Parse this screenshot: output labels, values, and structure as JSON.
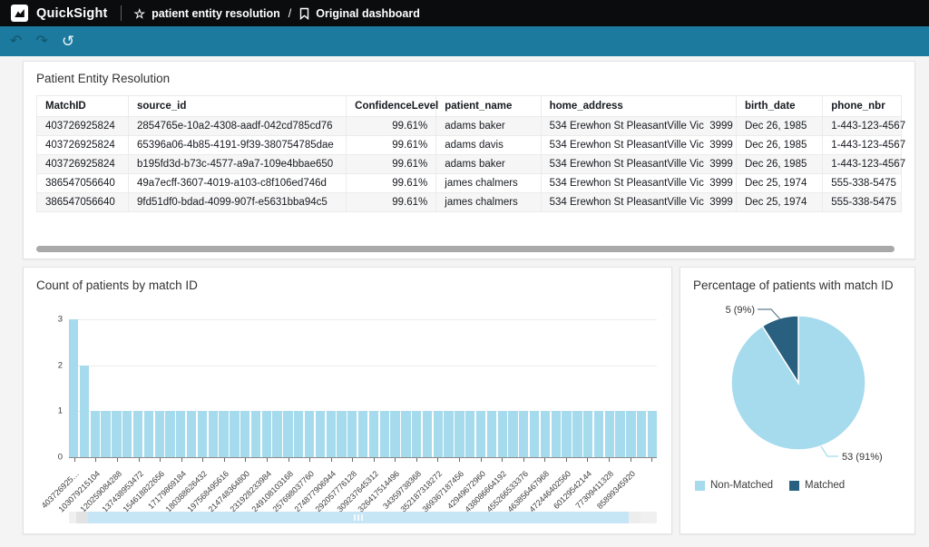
{
  "header": {
    "app_name": "QuickSight",
    "breadcrumb_analysis": "patient entity resolution",
    "breadcrumb_separator": "/",
    "breadcrumb_page": "Original dashboard"
  },
  "icons": {
    "undo": "↶",
    "redo": "↷",
    "reset": "↺",
    "star": "☆"
  },
  "colors": {
    "toolbar_teal": "#1b7a9e",
    "topbar_black": "#0b0c0d",
    "bar_fill": "#a5dbed",
    "pie_light": "#a5dbed",
    "pie_dark": "#2a607f"
  },
  "table_panel": {
    "title": "Patient Entity Resolution",
    "columns": [
      "MatchID",
      "source_id",
      "ConfidenceLevel",
      "patient_name",
      "home_address",
      "birth_date",
      "phone_nbr"
    ],
    "rows": [
      [
        "403726925824",
        "2854765e-10a2-4308-aadf-042cd785cd76",
        "99.61%",
        "adams baker",
        "534 Erewhon St PleasantVille Vic  3999",
        "Dec 26, 1985",
        "1-443-123-4567"
      ],
      [
        "403726925824",
        "65396a06-4b85-4191-9f39-380754785dae",
        "99.61%",
        "adams davis",
        "534 Erewhon St PleasantVille Vic  3999",
        "Dec 26, 1985",
        "1-443-123-4567"
      ],
      [
        "403726925824",
        "b195fd3d-b73c-4577-a9a7-109e4bbae650",
        "99.61%",
        "adams baker",
        "534 Erewhon St PleasantVille Vic  3999",
        "Dec 26, 1985",
        "1-443-123-4567"
      ],
      [
        "386547056640",
        "49a7ecff-3607-4019-a103-c8f106ed746d",
        "99.61%",
        "james chalmers",
        "534 Erewhon St PleasantVille Vic  3999",
        "Dec 25, 1974",
        "555-338-5475"
      ],
      [
        "386547056640",
        "9fd51df0-bdad-4099-907f-e5631bba94c5",
        "99.61%",
        "james chalmers",
        "534 Erewhon St PleasantVille Vic  3999",
        "Dec 25, 1974",
        "555-338-5475"
      ]
    ]
  },
  "chart_data": [
    {
      "type": "bar",
      "title": "Count of patients by match ID",
      "xlabel": "",
      "ylabel": "",
      "ylim": [
        0,
        3
      ],
      "y_ticks": [
        0,
        1,
        2,
        3
      ],
      "grid": true,
      "bar_count": 55,
      "values": [
        3,
        2,
        1,
        1,
        1,
        1,
        1,
        1,
        1,
        1,
        1,
        1,
        1,
        1,
        1,
        1,
        1,
        1,
        1,
        1,
        1,
        1,
        1,
        1,
        1,
        1,
        1,
        1,
        1,
        1,
        1,
        1,
        1,
        1,
        1,
        1,
        1,
        1,
        1,
        1,
        1,
        1,
        1,
        1,
        1,
        1,
        1,
        1,
        1,
        1,
        1,
        1,
        1,
        1,
        1
      ],
      "visible_tick_labels": [
        "403726925…",
        "103079215104",
        "120259084288",
        "137438953472",
        "154618822656",
        "17179869184",
        "180388626432",
        "197568495616",
        "214748364800",
        "231928233984",
        "249108103168",
        "257698037760",
        "274877906944",
        "292057776128",
        "309237645312",
        "326417514496",
        "34359738368",
        "352187318272",
        "369367187456",
        "42949672960",
        "438086664192",
        "455266533376",
        "463856467968",
        "472446402560",
        "60129542144",
        "77309411328",
        "85899345920"
      ],
      "note_top_bars": {
        "403726925824": 3,
        "386547056640": 2
      }
    },
    {
      "type": "pie",
      "title": "Percentage of patients with match ID",
      "slices": [
        {
          "label": "Non-Matched",
          "value": 53,
          "pct": 91,
          "color": "#a5dbed"
        },
        {
          "label": "Matched",
          "value": 5,
          "pct": 9,
          "color": "#2a607f"
        }
      ],
      "data_labels": {
        "matched": "5 (9%)",
        "non_matched": "53 (91%)"
      },
      "legend_position": "bottom"
    }
  ]
}
